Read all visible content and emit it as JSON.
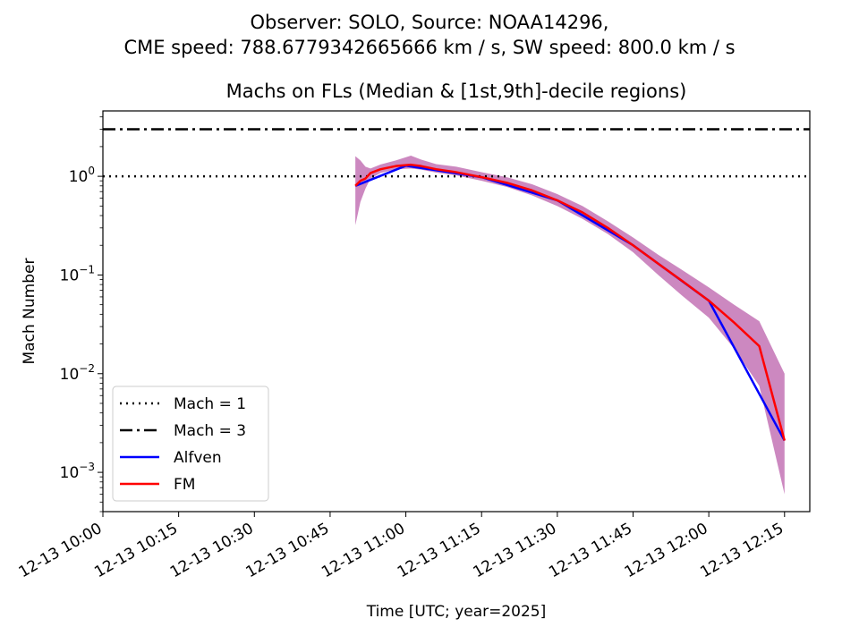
{
  "suptitle_line1": "Observer: SOLO, Source: NOAA14296,",
  "suptitle_line2": "CME speed: 788.6779342665666 km / s, SW speed: 800.0 km / s",
  "chart_data": {
    "type": "line",
    "title": "Machs on FLs (Median & [1st,9th]-decile regions)",
    "xlabel": "Time [UTC; year=2025]",
    "ylabel": "Mach Number",
    "yscale": "log",
    "ylim": [
      0.0004,
      4.6
    ],
    "xlim": [
      "2025-12-13 10:00",
      "2025-12-13 12:20"
    ],
    "x_ticks": [
      "12-13 10:00",
      "12-13 10:15",
      "12-13 10:30",
      "12-13 10:45",
      "12-13 11:00",
      "12-13 11:15",
      "12-13 11:30",
      "12-13 11:45",
      "12-13 12:00",
      "12-13 12:15"
    ],
    "y_ticks": [
      {
        "value": 0.001,
        "base": "10",
        "exp": "−3"
      },
      {
        "value": 0.01,
        "base": "10",
        "exp": "−2"
      },
      {
        "value": 0.1,
        "base": "10",
        "exp": "−1"
      },
      {
        "value": 1,
        "base": "10",
        "exp": "0"
      }
    ],
    "reference_lines": [
      {
        "label": "Mach = 1",
        "value": 1,
        "style": "dotted",
        "color": "#000000"
      },
      {
        "label": "Mach = 3",
        "value": 3,
        "style": "dashdot",
        "color": "#000000"
      }
    ],
    "series": [
      {
        "name": "FM",
        "color": "#ff0000",
        "x": [
          "2025-12-13 10:50",
          "2025-12-13 10:51",
          "2025-12-13 10:52",
          "2025-12-13 10:53",
          "2025-12-13 10:55",
          "2025-12-13 10:58",
          "2025-12-13 11:01",
          "2025-12-13 11:03",
          "2025-12-13 11:06",
          "2025-12-13 11:10",
          "2025-12-13 11:15",
          "2025-12-13 11:20",
          "2025-12-13 11:25",
          "2025-12-13 11:30",
          "2025-12-13 11:35",
          "2025-12-13 11:40",
          "2025-12-13 11:45",
          "2025-12-13 11:50",
          "2025-12-13 11:55",
          "2025-12-13 12:00",
          "2025-12-13 12:05",
          "2025-12-13 12:10",
          "2025-12-13 12:15"
        ],
        "y": [
          0.8,
          0.9,
          0.95,
          1.08,
          1.18,
          1.27,
          1.31,
          1.27,
          1.18,
          1.1,
          0.98,
          0.86,
          0.72,
          0.57,
          0.43,
          0.3,
          0.2,
          0.13,
          0.085,
          0.055,
          0.033,
          0.019,
          0.0021
        ]
      },
      {
        "name": "Alfven",
        "color": "#0000ff",
        "x": [
          "2025-12-13 10:50",
          "2025-12-13 11:00",
          "2025-12-13 11:15",
          "2025-12-13 11:30",
          "2025-12-13 11:45",
          "2025-12-13 12:00",
          "2025-12-13 12:15"
        ],
        "y": [
          0.8,
          1.28,
          0.98,
          0.57,
          0.2,
          0.055,
          0.0021
        ]
      }
    ],
    "band": {
      "label": "[1st,9th]-decile",
      "color": "#cc88c0",
      "x": [
        "2025-12-13 10:50",
        "2025-12-13 10:51",
        "2025-12-13 10:52",
        "2025-12-13 10:53",
        "2025-12-13 10:55",
        "2025-12-13 10:58",
        "2025-12-13 11:01",
        "2025-12-13 11:03",
        "2025-12-13 11:06",
        "2025-12-13 11:10",
        "2025-12-13 11:15",
        "2025-12-13 11:20",
        "2025-12-13 11:25",
        "2025-12-13 11:30",
        "2025-12-13 11:35",
        "2025-12-13 11:40",
        "2025-12-13 11:45",
        "2025-12-13 11:50",
        "2025-12-13 11:55",
        "2025-12-13 12:00",
        "2025-12-13 12:05",
        "2025-12-13 12:10",
        "2025-12-13 12:15"
      ],
      "lower": [
        0.32,
        0.55,
        0.75,
        0.95,
        1.08,
        1.18,
        1.2,
        1.17,
        1.09,
        1.02,
        0.9,
        0.78,
        0.64,
        0.5,
        0.37,
        0.26,
        0.17,
        0.1,
        0.06,
        0.037,
        0.018,
        0.0075,
        0.0006
      ],
      "upper": [
        1.6,
        1.45,
        1.25,
        1.2,
        1.32,
        1.45,
        1.62,
        1.48,
        1.33,
        1.25,
        1.1,
        0.98,
        0.83,
        0.66,
        0.5,
        0.35,
        0.24,
        0.16,
        0.11,
        0.075,
        0.05,
        0.034,
        0.01
      ]
    },
    "legend": {
      "placement": "lower-left",
      "entries": [
        {
          "label": "Mach = 1",
          "style": "dotted",
          "color": "#000000"
        },
        {
          "label": "Mach = 3",
          "style": "dashdot",
          "color": "#000000"
        },
        {
          "label": "Alfven",
          "style": "solid",
          "color": "#0000ff"
        },
        {
          "label": "FM",
          "style": "solid",
          "color": "#ff0000"
        }
      ]
    }
  }
}
